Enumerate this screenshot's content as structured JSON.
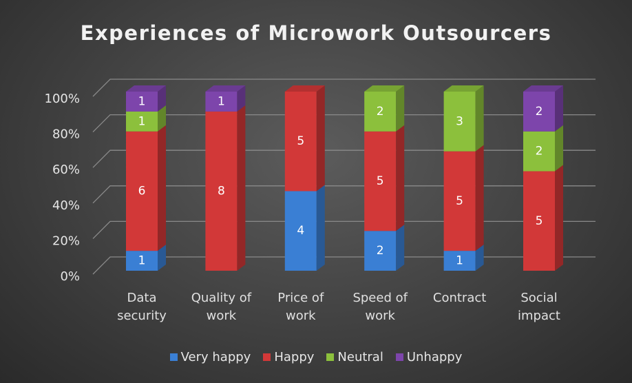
{
  "chart_data": {
    "type": "bar",
    "stacking": "percent",
    "title": "Experiences of Microwork Outsourcers",
    "categories": [
      "Data security",
      "Quality of work",
      "Price of work",
      "Speed of work",
      "Contract",
      "Social impact"
    ],
    "series": [
      {
        "name": "Very happy",
        "color": "#3a7fd4",
        "values": [
          1,
          null,
          4,
          2,
          1,
          null
        ]
      },
      {
        "name": "Happy",
        "color": "#d23838",
        "values": [
          6,
          8,
          5,
          5,
          5,
          5
        ]
      },
      {
        "name": "Neutral",
        "color": "#8cc03c",
        "values": [
          1,
          null,
          null,
          2,
          3,
          2
        ]
      },
      {
        "name": "Unhappy",
        "color": "#7d45ab",
        "values": [
          1,
          1,
          null,
          null,
          null,
          2
        ]
      }
    ],
    "ylim": [
      0,
      100
    ],
    "yticks": [
      {
        "value": 0,
        "label": "0%"
      },
      {
        "value": 20,
        "label": "20%"
      },
      {
        "value": 40,
        "label": "40%"
      },
      {
        "value": 60,
        "label": "60%"
      },
      {
        "value": 80,
        "label": "80%"
      },
      {
        "value": 100,
        "label": "100%"
      }
    ],
    "grid": true,
    "legend": "bottom"
  }
}
